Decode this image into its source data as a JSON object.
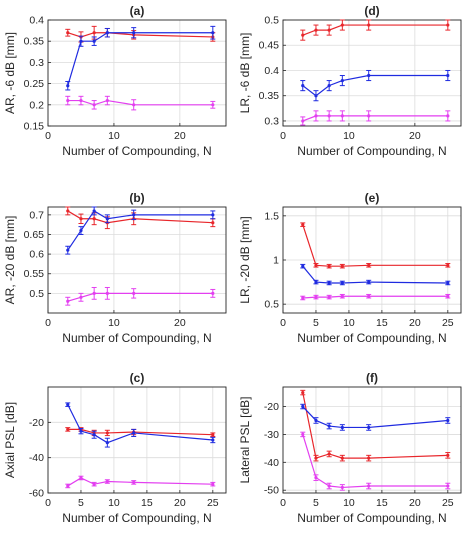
{
  "figure": {
    "colors": {
      "red": "#e8262b",
      "blue": "#1f2be0",
      "magenta": "#e33ff0",
      "axis": "#262626",
      "grid": "#dcdcdc"
    }
  },
  "chart_data": [
    {
      "id": "a",
      "type": "line",
      "title": "(a)",
      "xlabel": "Number of Compounding, N",
      "ylabel": "AR, -6 dB [mm]",
      "xlim": [
        0,
        27
      ],
      "ylim": [
        0.15,
        0.4
      ],
      "xticks": [
        0,
        10,
        20
      ],
      "yticks": [
        0.15,
        0.2,
        0.25,
        0.3,
        0.35,
        0.4
      ],
      "yticklabels": [
        "0.15",
        "0.2",
        "0.25",
        "0.3",
        "0.35",
        "0.4"
      ],
      "grid": true,
      "x": [
        3,
        5,
        7,
        9,
        13,
        25
      ],
      "series": [
        {
          "color": "red",
          "values": [
            0.37,
            0.36,
            0.37,
            0.37,
            0.365,
            0.36
          ],
          "err": [
            0.008,
            0.012,
            0.015,
            0.01,
            0.01,
            0.01
          ]
        },
        {
          "color": "blue",
          "values": [
            0.245,
            0.35,
            0.35,
            0.37,
            0.37,
            0.37
          ],
          "err": [
            0.01,
            0.012,
            0.01,
            0.01,
            0.012,
            0.015
          ]
        },
        {
          "color": "magenta",
          "values": [
            0.21,
            0.21,
            0.2,
            0.21,
            0.2,
            0.2
          ],
          "err": [
            0.01,
            0.01,
            0.01,
            0.01,
            0.012,
            0.008
          ]
        }
      ]
    },
    {
      "id": "b",
      "type": "line",
      "title": "(b)",
      "xlabel": "Number of Compounding, N",
      "ylabel": "AR, -20 dB [mm]",
      "xlim": [
        0,
        27
      ],
      "ylim": [
        0.45,
        0.72
      ],
      "xticks": [
        0,
        10,
        20
      ],
      "yticks": [
        0.5,
        0.55,
        0.6,
        0.65,
        0.7
      ],
      "yticklabels": [
        "0.5",
        "0.55",
        "0.6",
        "0.65",
        "0.7"
      ],
      "grid": true,
      "x": [
        3,
        5,
        7,
        9,
        13,
        25
      ],
      "series": [
        {
          "color": "red",
          "values": [
            0.71,
            0.69,
            0.69,
            0.68,
            0.69,
            0.68
          ],
          "err": [
            0.01,
            0.012,
            0.015,
            0.015,
            0.015,
            0.01
          ]
        },
        {
          "color": "blue",
          "values": [
            0.61,
            0.66,
            0.71,
            0.69,
            0.7,
            0.7
          ],
          "err": [
            0.01,
            0.01,
            0.01,
            0.01,
            0.012,
            0.01
          ]
        },
        {
          "color": "magenta",
          "values": [
            0.48,
            0.49,
            0.5,
            0.5,
            0.5,
            0.5
          ],
          "err": [
            0.01,
            0.01,
            0.015,
            0.015,
            0.012,
            0.01
          ]
        }
      ]
    },
    {
      "id": "c",
      "type": "line",
      "title": "(c)",
      "xlabel": "Number of Compounding, N",
      "ylabel": "Axial PSL [dB]",
      "xlim": [
        0,
        27
      ],
      "ylim": [
        -60,
        0
      ],
      "xticks": [
        0,
        5,
        10,
        15,
        20,
        25
      ],
      "yticks": [
        -60,
        -40,
        -20
      ],
      "yticklabels": [
        "-60",
        "-40",
        "-20"
      ],
      "grid": true,
      "x": [
        3,
        5,
        7,
        9,
        13,
        25
      ],
      "series": [
        {
          "color": "red",
          "values": [
            -24,
            -24,
            -26,
            -26,
            -25.5,
            -27
          ],
          "err": [
            1,
            1,
            1.5,
            1.5,
            1.5,
            1
          ]
        },
        {
          "color": "blue",
          "values": [
            -10,
            -25,
            -27,
            -31.5,
            -26,
            -30
          ],
          "err": [
            1,
            1.5,
            2,
            2.5,
            2,
            1.5
          ]
        },
        {
          "color": "magenta",
          "values": [
            -56,
            -51.5,
            -55,
            -53.5,
            -54,
            -55
          ],
          "err": [
            1,
            1,
            1,
            1,
            1,
            1
          ]
        }
      ]
    },
    {
      "id": "d",
      "type": "line",
      "title": "(d)",
      "xlabel": "Number of Compounding, N",
      "ylabel": "LR, -6 dB [mm]",
      "xlim": [
        0,
        27
      ],
      "ylim": [
        0.29,
        0.5
      ],
      "xticks": [
        0,
        10,
        20
      ],
      "yticks": [
        0.3,
        0.35,
        0.4,
        0.45,
        0.5
      ],
      "yticklabels": [
        "0.3",
        "0.35",
        "0.4",
        "0.45",
        "0.5"
      ],
      "grid": true,
      "x": [
        3,
        5,
        7,
        9,
        13,
        25
      ],
      "series": [
        {
          "color": "red",
          "values": [
            0.47,
            0.48,
            0.48,
            0.49,
            0.49,
            0.49
          ],
          "err": [
            0.01,
            0.01,
            0.01,
            0.01,
            0.01,
            0.01
          ]
        },
        {
          "color": "blue",
          "values": [
            0.37,
            0.35,
            0.37,
            0.38,
            0.39,
            0.39
          ],
          "err": [
            0.01,
            0.01,
            0.01,
            0.01,
            0.01,
            0.01
          ]
        },
        {
          "color": "magenta",
          "values": [
            0.3,
            0.31,
            0.31,
            0.31,
            0.31,
            0.31
          ],
          "err": [
            0.008,
            0.01,
            0.01,
            0.01,
            0.01,
            0.01
          ]
        }
      ]
    },
    {
      "id": "e",
      "type": "line",
      "title": "(e)",
      "xlabel": "Number of Compounding, N",
      "ylabel": "LR, -20 dB [mm]",
      "xlim": [
        0,
        27
      ],
      "ylim": [
        0.4,
        1.6
      ],
      "xticks": [
        0,
        5,
        10,
        15,
        20,
        25
      ],
      "yticks": [
        0.5,
        1,
        1.5
      ],
      "yticklabels": [
        "0.5",
        "1",
        "1.5"
      ],
      "grid": true,
      "x": [
        3,
        5,
        7,
        9,
        13,
        25
      ],
      "series": [
        {
          "color": "red",
          "values": [
            1.4,
            0.94,
            0.93,
            0.93,
            0.94,
            0.94
          ],
          "err": [
            0.02,
            0.02,
            0.02,
            0.02,
            0.02,
            0.02
          ]
        },
        {
          "color": "blue",
          "values": [
            0.93,
            0.75,
            0.74,
            0.74,
            0.75,
            0.74
          ],
          "err": [
            0.02,
            0.02,
            0.02,
            0.02,
            0.02,
            0.02
          ]
        },
        {
          "color": "magenta",
          "values": [
            0.57,
            0.58,
            0.58,
            0.59,
            0.59,
            0.59
          ],
          "err": [
            0.02,
            0.02,
            0.02,
            0.02,
            0.02,
            0.02
          ]
        }
      ]
    },
    {
      "id": "f",
      "type": "line",
      "title": "(f)",
      "xlabel": "Number of Compounding, N",
      "ylabel": "Lateral PSL [dB]",
      "xlim": [
        0,
        27
      ],
      "ylim": [
        -51,
        -13
      ],
      "xticks": [
        0,
        5,
        10,
        15,
        20,
        25
      ],
      "yticks": [
        -50,
        -40,
        -30,
        -20
      ],
      "yticklabels": [
        "-50",
        "-40",
        "-30",
        "-20"
      ],
      "grid": true,
      "x": [
        3,
        5,
        7,
        9,
        13,
        25
      ],
      "series": [
        {
          "color": "red",
          "values": [
            -15,
            -38.5,
            -37,
            -38.5,
            -38.5,
            -37.5
          ],
          "err": [
            0.8,
            1,
            1,
            1,
            1,
            1
          ]
        },
        {
          "color": "blue",
          "values": [
            -20,
            -25,
            -27,
            -27.5,
            -27.5,
            -25
          ],
          "err": [
            0.8,
            1,
            1,
            1,
            1,
            1
          ]
        },
        {
          "color": "magenta",
          "values": [
            -30,
            -45.5,
            -48.5,
            -49,
            -48.5,
            -48.5
          ],
          "err": [
            0.8,
            1,
            1,
            1,
            1,
            1
          ]
        }
      ]
    }
  ]
}
